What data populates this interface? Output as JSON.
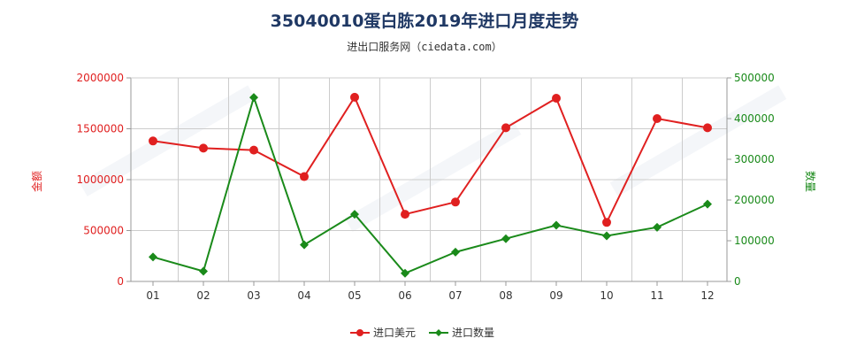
{
  "title": "35040010蛋白胨2019年进口月度走势",
  "subtitle": "进出口服务网（ciedata.com）",
  "colors": {
    "left_axis": "#e02020",
    "right_axis": "#1a8a1a",
    "grid": "#cccccc",
    "axis": "#999999"
  },
  "chart_data": {
    "type": "line",
    "categories": [
      "01",
      "02",
      "03",
      "04",
      "05",
      "06",
      "07",
      "08",
      "09",
      "10",
      "11",
      "12"
    ],
    "series": [
      {
        "name": "进口美元",
        "axis": "left",
        "color": "#e02020",
        "values": [
          1380000,
          1310000,
          1290000,
          1030000,
          1810000,
          660000,
          780000,
          1510000,
          1800000,
          580000,
          1600000,
          1510000
        ]
      },
      {
        "name": "进口数量",
        "axis": "right",
        "color": "#1a8a1a",
        "values": [
          60000,
          25000,
          452000,
          90000,
          165000,
          20000,
          72000,
          105000,
          138000,
          112000,
          133000,
          190000
        ]
      }
    ],
    "left_axis": {
      "label": "金额",
      "min": 0,
      "max": 2000000,
      "ticks": [
        0,
        500000,
        1000000,
        1500000,
        2000000
      ],
      "tick_labels": [
        "0",
        "500000",
        "1000000",
        "1500000",
        "2000000"
      ]
    },
    "right_axis": {
      "label": "数量",
      "min": 0,
      "max": 500000,
      "ticks": [
        0,
        100000,
        200000,
        300000,
        400000,
        500000
      ],
      "tick_labels": [
        "0",
        "100000",
        "200000",
        "300000",
        "400000",
        "500000"
      ]
    },
    "grid": true,
    "legend_position": "bottom-center"
  }
}
